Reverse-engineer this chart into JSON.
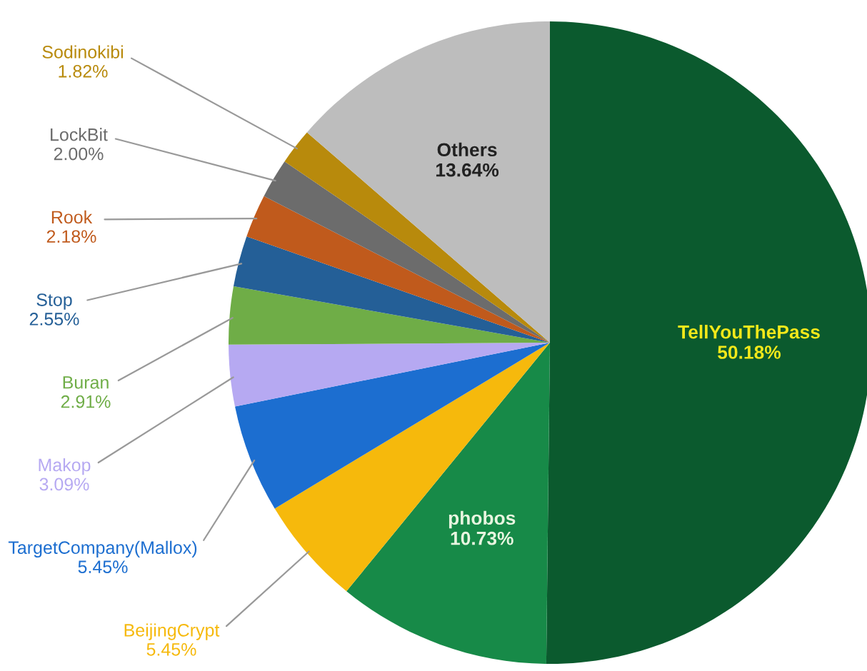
{
  "chart_data": {
    "type": "pie",
    "categories": [
      "TellYouThePass",
      "phobos",
      "BeijingCrypt",
      "TargetCompany(Mallox)",
      "Makop",
      "Buran",
      "Stop",
      "Rook",
      "LockBit",
      "Sodinokibi",
      "Others"
    ],
    "values": [
      50.18,
      10.73,
      5.45,
      5.45,
      3.09,
      2.91,
      2.55,
      2.18,
      2.0,
      1.82,
      13.64
    ],
    "colors": [
      "#0b5a2e",
      "#178a48",
      "#f6b90c",
      "#1c6ed0",
      "#b6a9f2",
      "#6fad47",
      "#245f97",
      "#c05a1c",
      "#6c6c6c",
      "#b88a0c",
      "#bdbdbd"
    ],
    "data_labels": true,
    "value_labels": [
      "50.18%",
      "10.73%",
      "5.45%",
      "5.45%",
      "3.09%",
      "2.91%",
      "2.55%",
      "2.18%",
      "2.00%",
      "1.82%",
      "13.64%"
    ]
  }
}
